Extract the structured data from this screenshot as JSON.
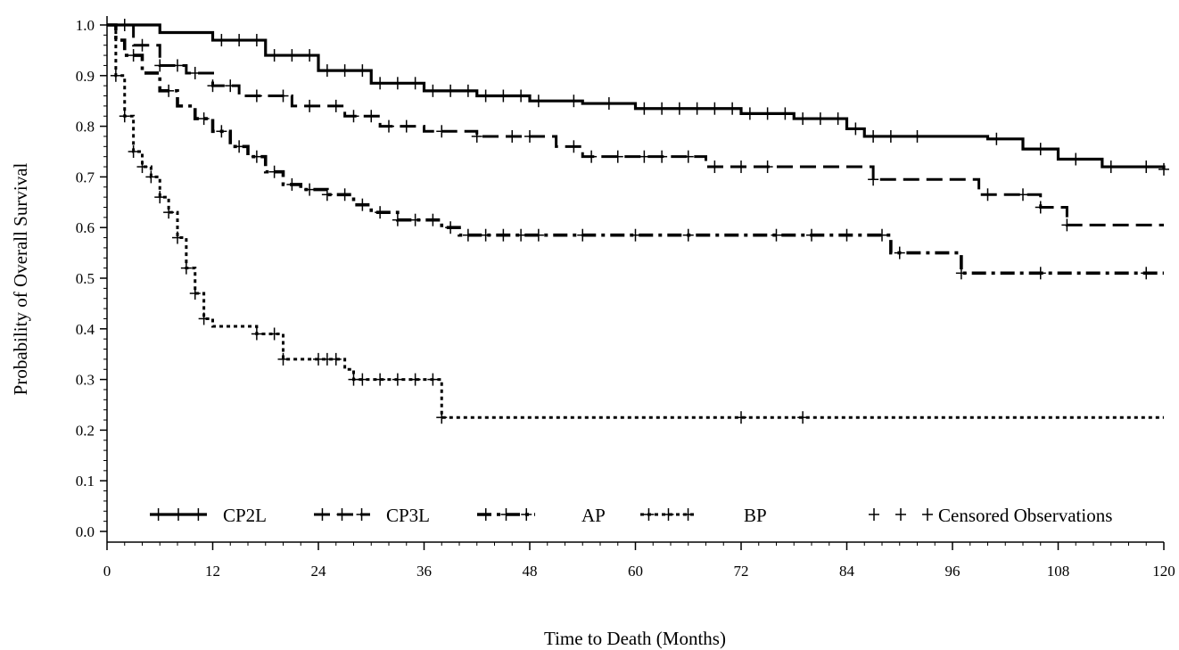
{
  "chart_data": {
    "type": "line",
    "subtype": "kaplan-meier-step",
    "title": "",
    "xlabel": "Time to Death (Months)",
    "ylabel": "Probability of Overall Survival",
    "xlim": [
      0,
      120
    ],
    "ylim": [
      0,
      1
    ],
    "xticks": [
      0,
      12,
      24,
      36,
      48,
      60,
      72,
      84,
      96,
      108,
      120
    ],
    "yticks": [
      0.0,
      0.1,
      0.2,
      0.3,
      0.4,
      0.5,
      0.6,
      0.7,
      0.8,
      0.9,
      1.0
    ],
    "grid": false,
    "legend_position": "bottom-inside",
    "series": [
      {
        "name": "CP2L",
        "style": "solid",
        "points": [
          [
            0,
            1.0
          ],
          [
            6,
            0.985
          ],
          [
            12,
            0.97
          ],
          [
            18,
            0.94
          ],
          [
            24,
            0.91
          ],
          [
            30,
            0.885
          ],
          [
            36,
            0.87
          ],
          [
            42,
            0.86
          ],
          [
            48,
            0.85
          ],
          [
            54,
            0.845
          ],
          [
            60,
            0.835
          ],
          [
            66,
            0.835
          ],
          [
            72,
            0.825
          ],
          [
            78,
            0.815
          ],
          [
            84,
            0.795
          ],
          [
            86,
            0.78
          ],
          [
            100,
            0.775
          ],
          [
            104,
            0.755
          ],
          [
            108,
            0.735
          ],
          [
            113,
            0.72
          ],
          [
            120,
            0.715
          ]
        ],
        "censored": [
          13,
          15,
          17,
          19,
          21,
          23,
          25,
          27,
          29,
          31,
          33,
          35,
          37,
          39,
          41,
          43,
          45,
          47,
          49,
          53,
          57,
          61,
          63,
          65,
          67,
          69,
          71,
          73,
          75,
          77,
          79,
          81,
          83,
          85,
          87,
          89,
          92,
          101,
          106,
          110,
          114,
          118,
          120
        ]
      },
      {
        "name": "CP3L",
        "style": "long-dash",
        "points": [
          [
            0,
            1.0
          ],
          [
            3,
            0.96
          ],
          [
            6,
            0.92
          ],
          [
            9,
            0.905
          ],
          [
            12,
            0.88
          ],
          [
            15,
            0.86
          ],
          [
            21,
            0.84
          ],
          [
            27,
            0.82
          ],
          [
            31,
            0.8
          ],
          [
            36,
            0.79
          ],
          [
            42,
            0.78
          ],
          [
            51,
            0.76
          ],
          [
            54,
            0.74
          ],
          [
            68,
            0.72
          ],
          [
            87,
            0.695
          ],
          [
            99,
            0.665
          ],
          [
            106,
            0.64
          ],
          [
            109,
            0.605
          ],
          [
            120,
            0.605
          ]
        ],
        "censored": [
          2,
          4,
          6,
          8,
          10,
          12,
          14,
          17,
          20,
          23,
          26,
          28,
          30,
          32,
          34,
          38,
          42,
          46,
          48,
          53,
          55,
          58,
          61,
          63,
          66,
          69,
          72,
          75,
          87,
          100,
          104,
          106,
          109
        ]
      },
      {
        "name": "AP",
        "style": "dash-dot",
        "points": [
          [
            0,
            1.0
          ],
          [
            1,
            0.97
          ],
          [
            2,
            0.94
          ],
          [
            4,
            0.905
          ],
          [
            6,
            0.87
          ],
          [
            8,
            0.84
          ],
          [
            10,
            0.815
          ],
          [
            12,
            0.79
          ],
          [
            14,
            0.76
          ],
          [
            16,
            0.74
          ],
          [
            18,
            0.71
          ],
          [
            20,
            0.685
          ],
          [
            22,
            0.675
          ],
          [
            25,
            0.665
          ],
          [
            28,
            0.645
          ],
          [
            30,
            0.63
          ],
          [
            33,
            0.615
          ],
          [
            38,
            0.6
          ],
          [
            40,
            0.585
          ],
          [
            89,
            0.55
          ],
          [
            94,
            0.55
          ],
          [
            97,
            0.51
          ],
          [
            120,
            0.51
          ]
        ],
        "censored": [
          3,
          7,
          11,
          13,
          15,
          17,
          19,
          21,
          23,
          25,
          27,
          29,
          31,
          33,
          35,
          37,
          39,
          41,
          43,
          45,
          47,
          49,
          54,
          60,
          66,
          76,
          80,
          84,
          88,
          90,
          97,
          106,
          118
        ]
      },
      {
        "name": "BP",
        "style": "dotted",
        "points": [
          [
            0,
            1.0
          ],
          [
            1,
            0.9
          ],
          [
            2,
            0.82
          ],
          [
            3,
            0.75
          ],
          [
            4,
            0.72
          ],
          [
            5,
            0.7
          ],
          [
            6,
            0.66
          ],
          [
            7,
            0.63
          ],
          [
            8,
            0.58
          ],
          [
            9,
            0.52
          ],
          [
            10,
            0.47
          ],
          [
            11,
            0.42
          ],
          [
            12,
            0.405
          ],
          [
            17,
            0.39
          ],
          [
            20,
            0.34
          ],
          [
            27,
            0.32
          ],
          [
            28,
            0.3
          ],
          [
            37,
            0.3
          ],
          [
            38,
            0.225
          ],
          [
            120,
            0.225
          ]
        ],
        "censored": [
          1,
          2,
          3,
          4,
          5,
          6,
          7,
          8,
          9,
          10,
          11,
          17,
          19,
          20,
          24,
          25,
          26,
          28,
          29,
          31,
          33,
          35,
          37,
          38,
          72,
          79
        ]
      }
    ],
    "legend": [
      {
        "label": "CP2L",
        "series": "CP2L"
      },
      {
        "label": "CP3L",
        "series": "CP3L"
      },
      {
        "label": "AP",
        "series": "AP"
      },
      {
        "label": "BP",
        "series": "BP"
      },
      {
        "label": "Censored Observations",
        "series": "censored"
      }
    ]
  }
}
